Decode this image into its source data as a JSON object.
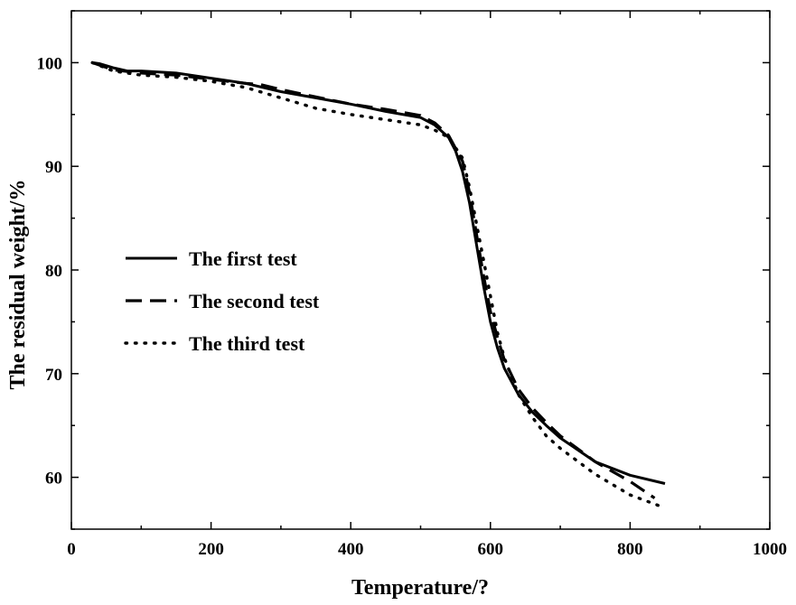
{
  "chart_data": {
    "type": "line",
    "title": "",
    "xlabel": "Temperature/?",
    "ylabel": "The residual weight/%",
    "xlim": [
      0,
      1000
    ],
    "ylim": [
      55,
      105
    ],
    "xticks": [
      0,
      200,
      400,
      600,
      800,
      1000
    ],
    "yticks": [
      60,
      70,
      80,
      90,
      100
    ],
    "grid": false,
    "legend_position": "left-center",
    "series": [
      {
        "name": "The first test",
        "style": "solid",
        "color": "#000000",
        "x": [
          30,
          40,
          60,
          80,
          100,
          150,
          200,
          250,
          300,
          350,
          400,
          450,
          500,
          520,
          540,
          550,
          560,
          570,
          580,
          590,
          600,
          610,
          620,
          640,
          660,
          680,
          700,
          750,
          800,
          850
        ],
        "y": [
          100.0,
          99.9,
          99.5,
          99.2,
          99.2,
          99.0,
          98.5,
          98.0,
          97.2,
          96.6,
          96.0,
          95.3,
          94.7,
          94.0,
          92.8,
          91.5,
          89.5,
          86.5,
          82.5,
          78.5,
          75.0,
          72.5,
          70.5,
          68.0,
          66.3,
          65.0,
          63.8,
          61.5,
          60.2,
          59.4
        ]
      },
      {
        "name": "The second test",
        "style": "dashed",
        "color": "#000000",
        "x": [
          30,
          60,
          100,
          150,
          200,
          250,
          270,
          300,
          350,
          400,
          450,
          500,
          520,
          540,
          560,
          570,
          580,
          590,
          600,
          610,
          620,
          640,
          660,
          680,
          700,
          750,
          800,
          835
        ],
        "y": [
          100.0,
          99.3,
          99.0,
          98.8,
          98.4,
          98.0,
          97.9,
          97.4,
          96.7,
          96.0,
          95.5,
          94.9,
          94.2,
          93.0,
          90.5,
          87.5,
          83.5,
          79.5,
          76.0,
          73.5,
          71.3,
          68.5,
          66.7,
          65.3,
          64.0,
          61.5,
          59.6,
          58.0
        ]
      },
      {
        "name": "The third test",
        "style": "dotted",
        "color": "#000000",
        "x": [
          30,
          60,
          100,
          150,
          200,
          250,
          300,
          350,
          400,
          450,
          500,
          520,
          540,
          560,
          570,
          580,
          590,
          600,
          610,
          620,
          640,
          660,
          680,
          700,
          750,
          800,
          840
        ],
        "y": [
          100.0,
          99.2,
          98.8,
          98.6,
          98.2,
          97.6,
          96.6,
          95.6,
          95.0,
          94.5,
          94.0,
          93.5,
          92.8,
          90.8,
          88.0,
          84.5,
          81.0,
          77.5,
          74.0,
          71.5,
          68.0,
          65.8,
          64.0,
          62.8,
          60.3,
          58.3,
          57.3
        ]
      }
    ]
  }
}
